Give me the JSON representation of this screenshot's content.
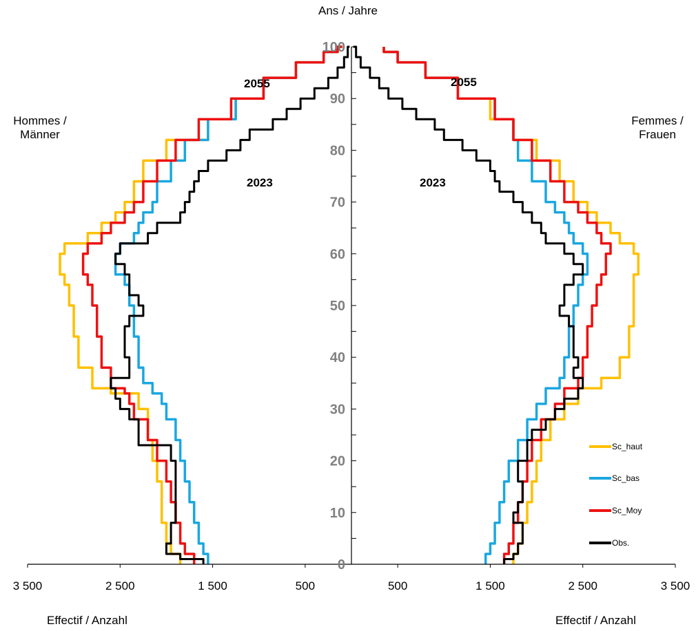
{
  "chart_data": {
    "type": "population-pyramid",
    "title": "Ans / Jahre",
    "left_label": "Hommes / Männer",
    "right_label": "Femmes / Frauen",
    "xlabel_left": "Effectif /  Anzahl",
    "xlabel_right": "Effectif / Anzahl",
    "x_ticks": [
      "3 500",
      "2 500",
      "1 500",
      "500",
      "500",
      "1 500",
      "2 500",
      "3 500"
    ],
    "x_tick_values": [
      -3500,
      -2500,
      -1500,
      -500,
      500,
      1500,
      2500,
      3500
    ],
    "xlim": [
      -3800,
      3800
    ],
    "y_ticks": [
      "0",
      "10",
      "20",
      "30",
      "40",
      "50",
      "60",
      "70",
      "80",
      "90",
      "100"
    ],
    "ylim": [
      0,
      100
    ],
    "annotations": [
      {
        "text": "2055",
        "side": "men",
        "age": 93
      },
      {
        "text": "2023",
        "side": "men",
        "age": 74
      },
      {
        "text": "2055",
        "side": "women",
        "age": 93
      },
      {
        "text": "2023",
        "side": "women",
        "age": 74
      }
    ],
    "series": [
      {
        "name": "Sc_haut",
        "color": "#FFC000",
        "men": [
          [
            0,
            1850
          ],
          [
            2,
            1950
          ],
          [
            4,
            2000
          ],
          [
            8,
            2050
          ],
          [
            12,
            2050
          ],
          [
            16,
            2100
          ],
          [
            20,
            2150
          ],
          [
            24,
            2200
          ],
          [
            30,
            2300
          ],
          [
            33,
            2600
          ],
          [
            34,
            2800
          ],
          [
            38,
            2950
          ],
          [
            44,
            3000
          ],
          [
            50,
            3050
          ],
          [
            54,
            3100
          ],
          [
            56,
            3150
          ],
          [
            60,
            3100
          ],
          [
            62,
            2850
          ],
          [
            64,
            2700
          ],
          [
            66,
            2550
          ],
          [
            68,
            2450
          ],
          [
            70,
            2350
          ],
          [
            74,
            2250
          ],
          [
            78,
            2000
          ],
          [
            82,
            1550
          ],
          [
            86,
            1250
          ],
          [
            90,
            950
          ],
          [
            94,
            600
          ],
          [
            97,
            300
          ],
          [
            99,
            150
          ],
          [
            100,
            100
          ]
        ],
        "women": [
          [
            0,
            1750
          ],
          [
            2,
            1800
          ],
          [
            4,
            1850
          ],
          [
            8,
            1900
          ],
          [
            12,
            1950
          ],
          [
            16,
            2000
          ],
          [
            20,
            2050
          ],
          [
            24,
            2150
          ],
          [
            28,
            2300
          ],
          [
            31,
            2450
          ],
          [
            34,
            2700
          ],
          [
            36,
            2900
          ],
          [
            40,
            3000
          ],
          [
            46,
            3050
          ],
          [
            50,
            3050
          ],
          [
            54,
            3050
          ],
          [
            56,
            3100
          ],
          [
            60,
            3050
          ],
          [
            62,
            2900
          ],
          [
            64,
            2800
          ],
          [
            66,
            2650
          ],
          [
            68,
            2550
          ],
          [
            70,
            2400
          ],
          [
            74,
            2250
          ],
          [
            78,
            2000
          ],
          [
            82,
            1750
          ],
          [
            86,
            1500
          ],
          [
            90,
            1150
          ],
          [
            94,
            800
          ],
          [
            97,
            500
          ],
          [
            99,
            350
          ],
          [
            100,
            350
          ]
        ]
      },
      {
        "name": "Sc_bas",
        "color": "#1AA7E0",
        "men": [
          [
            0,
            1550
          ],
          [
            2,
            1600
          ],
          [
            4,
            1650
          ],
          [
            8,
            1700
          ],
          [
            12,
            1750
          ],
          [
            16,
            1800
          ],
          [
            20,
            1850
          ],
          [
            24,
            1900
          ],
          [
            28,
            2000
          ],
          [
            31,
            2050
          ],
          [
            33,
            2150
          ],
          [
            35,
            2250
          ],
          [
            38,
            2300
          ],
          [
            44,
            2350
          ],
          [
            50,
            2400
          ],
          [
            54,
            2450
          ],
          [
            56,
            2550
          ],
          [
            60,
            2500
          ],
          [
            62,
            2350
          ],
          [
            64,
            2300
          ],
          [
            66,
            2250
          ],
          [
            68,
            2150
          ],
          [
            70,
            2100
          ],
          [
            74,
            1950
          ],
          [
            78,
            1800
          ],
          [
            82,
            1550
          ],
          [
            86,
            1250
          ],
          [
            90,
            950
          ],
          [
            94,
            600
          ],
          [
            97,
            300
          ],
          [
            99,
            150
          ],
          [
            100,
            100
          ]
        ],
        "women": [
          [
            0,
            1450
          ],
          [
            2,
            1500
          ],
          [
            4,
            1550
          ],
          [
            8,
            1600
          ],
          [
            12,
            1650
          ],
          [
            16,
            1700
          ],
          [
            20,
            1800
          ],
          [
            24,
            1900
          ],
          [
            28,
            2000
          ],
          [
            31,
            2100
          ],
          [
            34,
            2250
          ],
          [
            36,
            2300
          ],
          [
            40,
            2350
          ],
          [
            46,
            2400
          ],
          [
            50,
            2450
          ],
          [
            54,
            2500
          ],
          [
            56,
            2550
          ],
          [
            60,
            2500
          ],
          [
            62,
            2400
          ],
          [
            64,
            2350
          ],
          [
            66,
            2300
          ],
          [
            68,
            2200
          ],
          [
            70,
            2100
          ],
          [
            74,
            1950
          ],
          [
            78,
            1800
          ],
          [
            82,
            1750
          ],
          [
            86,
            1550
          ],
          [
            90,
            1150
          ],
          [
            94,
            800
          ],
          [
            97,
            500
          ],
          [
            99,
            350
          ],
          [
            100,
            350
          ]
        ]
      },
      {
        "name": "Sc_Moy",
        "color": "#EE1111",
        "men": [
          [
            0,
            1700
          ],
          [
            2,
            1800
          ],
          [
            4,
            1850
          ],
          [
            8,
            1900
          ],
          [
            12,
            1950
          ],
          [
            16,
            2000
          ],
          [
            20,
            2100
          ],
          [
            24,
            2200
          ],
          [
            28,
            2350
          ],
          [
            31,
            2400
          ],
          [
            33,
            2450
          ],
          [
            34,
            2600
          ],
          [
            38,
            2700
          ],
          [
            44,
            2750
          ],
          [
            50,
            2800
          ],
          [
            54,
            2850
          ],
          [
            56,
            2900
          ],
          [
            60,
            2850
          ],
          [
            62,
            2700
          ],
          [
            64,
            2600
          ],
          [
            66,
            2450
          ],
          [
            68,
            2350
          ],
          [
            70,
            2250
          ],
          [
            74,
            2100
          ],
          [
            78,
            1900
          ],
          [
            82,
            1650
          ],
          [
            86,
            1300
          ],
          [
            90,
            950
          ],
          [
            94,
            600
          ],
          [
            97,
            300
          ],
          [
            99,
            150
          ],
          [
            100,
            100
          ]
        ],
        "women": [
          [
            0,
            1650
          ],
          [
            2,
            1700
          ],
          [
            4,
            1750
          ],
          [
            8,
            1800
          ],
          [
            12,
            1850
          ],
          [
            16,
            1900
          ],
          [
            20,
            1950
          ],
          [
            24,
            2050
          ],
          [
            28,
            2200
          ],
          [
            31,
            2300
          ],
          [
            34,
            2450
          ],
          [
            36,
            2500
          ],
          [
            40,
            2550
          ],
          [
            46,
            2600
          ],
          [
            50,
            2650
          ],
          [
            54,
            2700
          ],
          [
            56,
            2750
          ],
          [
            60,
            2800
          ],
          [
            62,
            2700
          ],
          [
            64,
            2650
          ],
          [
            66,
            2550
          ],
          [
            68,
            2450
          ],
          [
            70,
            2300
          ],
          [
            74,
            2150
          ],
          [
            78,
            1950
          ],
          [
            82,
            1750
          ],
          [
            86,
            1550
          ],
          [
            90,
            1150
          ],
          [
            94,
            800
          ],
          [
            97,
            500
          ],
          [
            99,
            350
          ],
          [
            100,
            350
          ]
        ]
      },
      {
        "name": "Obs.",
        "color": "#000000",
        "men": [
          [
            0,
            1600
          ],
          [
            1,
            1850
          ],
          [
            2,
            2000
          ],
          [
            4,
            1950
          ],
          [
            8,
            1900
          ],
          [
            12,
            1900
          ],
          [
            16,
            1900
          ],
          [
            20,
            1950
          ],
          [
            22,
            1950
          ],
          [
            23,
            2300
          ],
          [
            26,
            2300
          ],
          [
            28,
            2400
          ],
          [
            30,
            2500
          ],
          [
            32,
            2550
          ],
          [
            34,
            2600
          ],
          [
            36,
            2400
          ],
          [
            38,
            2400
          ],
          [
            40,
            2450
          ],
          [
            44,
            2450
          ],
          [
            46,
            2400
          ],
          [
            48,
            2250
          ],
          [
            50,
            2300
          ],
          [
            52,
            2400
          ],
          [
            56,
            2450
          ],
          [
            58,
            2550
          ],
          [
            60,
            2500
          ],
          [
            62,
            2200
          ],
          [
            64,
            2100
          ],
          [
            66,
            1850
          ],
          [
            68,
            1800
          ],
          [
            70,
            1750
          ],
          [
            72,
            1700
          ],
          [
            74,
            1650
          ],
          [
            76,
            1550
          ],
          [
            78,
            1350
          ],
          [
            80,
            1200
          ],
          [
            82,
            1100
          ],
          [
            84,
            850
          ],
          [
            86,
            700
          ],
          [
            88,
            550
          ],
          [
            90,
            400
          ],
          [
            92,
            250
          ],
          [
            94,
            150
          ],
          [
            96,
            80
          ],
          [
            98,
            40
          ],
          [
            100,
            20
          ]
        ],
        "women": [
          [
            0,
            1650
          ],
          [
            1,
            1750
          ],
          [
            2,
            1800
          ],
          [
            4,
            1850
          ],
          [
            6,
            1850
          ],
          [
            8,
            1750
          ],
          [
            10,
            1800
          ],
          [
            12,
            1850
          ],
          [
            14,
            1850
          ],
          [
            16,
            1800
          ],
          [
            18,
            1800
          ],
          [
            20,
            1900
          ],
          [
            22,
            1900
          ],
          [
            24,
            1950
          ],
          [
            26,
            2100
          ],
          [
            28,
            2200
          ],
          [
            30,
            2300
          ],
          [
            32,
            2450
          ],
          [
            34,
            2500
          ],
          [
            36,
            2400
          ],
          [
            38,
            2450
          ],
          [
            40,
            2400
          ],
          [
            44,
            2400
          ],
          [
            46,
            2350
          ],
          [
            48,
            2250
          ],
          [
            50,
            2300
          ],
          [
            52,
            2300
          ],
          [
            54,
            2400
          ],
          [
            56,
            2500
          ],
          [
            58,
            2400
          ],
          [
            60,
            2300
          ],
          [
            62,
            2100
          ],
          [
            64,
            2050
          ],
          [
            66,
            1950
          ],
          [
            68,
            1850
          ],
          [
            70,
            1750
          ],
          [
            72,
            1600
          ],
          [
            74,
            1550
          ],
          [
            76,
            1500
          ],
          [
            78,
            1350
          ],
          [
            80,
            1200
          ],
          [
            82,
            1000
          ],
          [
            84,
            900
          ],
          [
            86,
            700
          ],
          [
            88,
            550
          ],
          [
            90,
            400
          ],
          [
            92,
            300
          ],
          [
            94,
            200
          ],
          [
            96,
            100
          ],
          [
            98,
            50
          ],
          [
            100,
            20
          ]
        ]
      }
    ]
  }
}
